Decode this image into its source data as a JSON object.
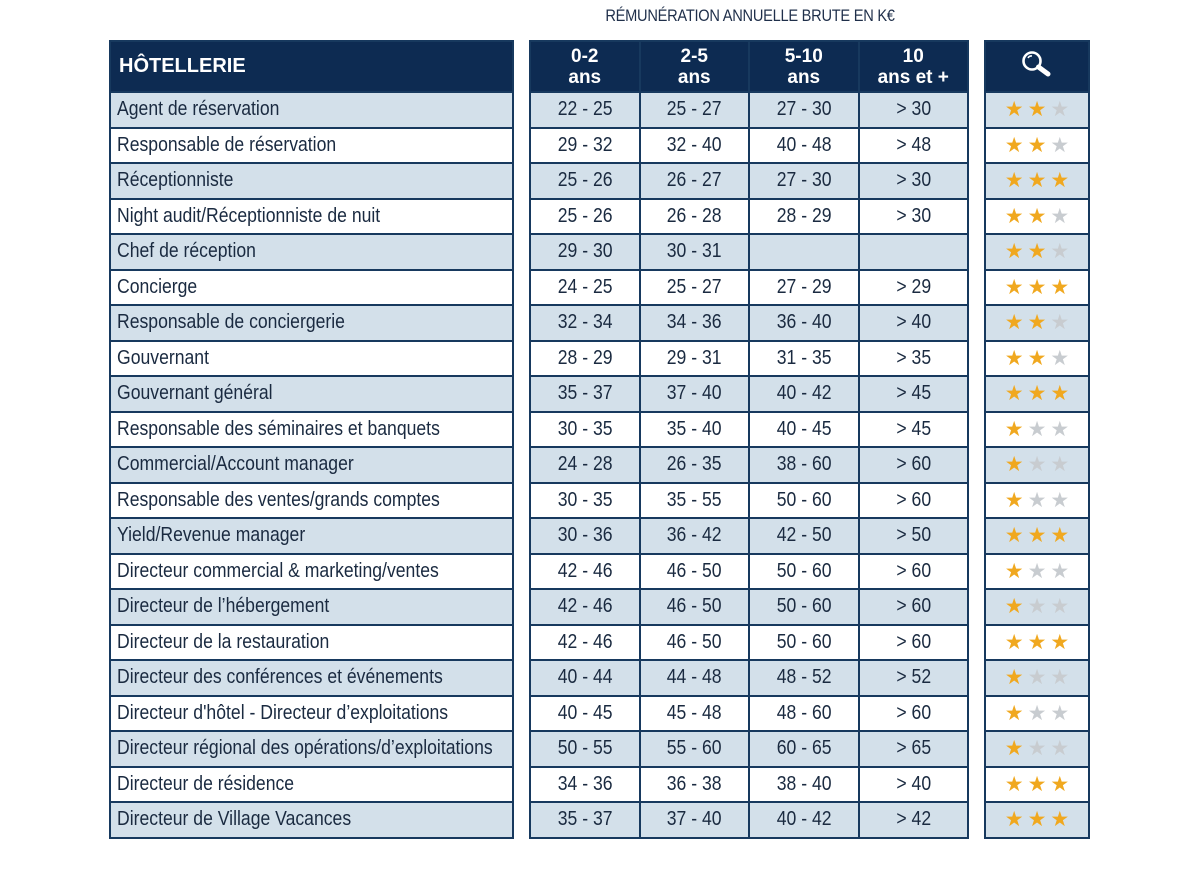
{
  "caption": "RÉMUNÉRATION ANNUELLE BRUTE EN K€",
  "table_title": "HÔTELLERIE",
  "columns": [
    {
      "line1": "0-2",
      "line2": "ans"
    },
    {
      "line1": "2-5",
      "line2": "ans"
    },
    {
      "line1": "5-10",
      "line2": "ans"
    },
    {
      "line1": "10",
      "line2": "ans et +"
    }
  ],
  "rating_header_icon": "magnifier-icon",
  "colors": {
    "header_bg": "#0d2b52",
    "row_alt": "#d3e0ea",
    "star": "#f0a81f",
    "star_empty": "#c8ccd0"
  },
  "rows": [
    {
      "job": "Agent de réservation",
      "salaries": [
        "22 - 25",
        "25 - 27",
        "27 - 30",
        "> 30"
      ],
      "stars": [
        "full",
        "full",
        "empty"
      ]
    },
    {
      "job": "Responsable de réservation",
      "salaries": [
        "29 - 32",
        "32 - 40",
        "40 - 48",
        "> 48"
      ],
      "stars": [
        "full",
        "full",
        "empty"
      ]
    },
    {
      "job": "Réceptionniste",
      "salaries": [
        "25 - 26",
        "26 - 27",
        "27 - 30",
        "> 30"
      ],
      "stars": [
        "full",
        "full",
        "full"
      ]
    },
    {
      "job": "Night audit/Réceptionniste de nuit",
      "salaries": [
        "25 - 26",
        "26 - 28",
        "28 - 29",
        "> 30"
      ],
      "stars": [
        "full",
        "full",
        "empty"
      ]
    },
    {
      "job": "Chef de réception",
      "salaries": [
        "29 - 30",
        "30 - 31",
        "",
        ""
      ],
      "stars": [
        "full",
        "full",
        "empty"
      ]
    },
    {
      "job": "Concierge",
      "salaries": [
        "24 - 25",
        "25 - 27",
        "27 - 29",
        "> 29"
      ],
      "stars": [
        "full",
        "full",
        "full"
      ]
    },
    {
      "job": "Responsable de conciergerie",
      "salaries": [
        "32 - 34",
        "34 - 36",
        "36 - 40",
        "> 40"
      ],
      "stars": [
        "full",
        "full",
        "empty"
      ]
    },
    {
      "job": "Gouvernant",
      "salaries": [
        "28 - 29",
        "29 - 31",
        "31 - 35",
        "> 35"
      ],
      "stars": [
        "full",
        "full",
        "empty"
      ]
    },
    {
      "job": "Gouvernant général",
      "salaries": [
        "35 - 37",
        "37 - 40",
        "40 - 42",
        "> 45"
      ],
      "stars": [
        "full",
        "full",
        "full"
      ]
    },
    {
      "job": "Responsable des séminaires et banquets",
      "salaries": [
        "30 - 35",
        "35 - 40",
        "40 - 45",
        "> 45"
      ],
      "stars": [
        "full",
        "empty",
        "empty"
      ]
    },
    {
      "job": "Commercial/Account manager",
      "salaries": [
        "24 - 28",
        "26 - 35",
        "38 - 60",
        "> 60"
      ],
      "stars": [
        "full",
        "empty",
        "empty"
      ]
    },
    {
      "job": "Responsable des ventes/grands comptes",
      "salaries": [
        "30 - 35",
        "35 - 55",
        "50 - 60",
        "> 60"
      ],
      "stars": [
        "full",
        "empty",
        "empty"
      ]
    },
    {
      "job": "Yield/Revenue manager",
      "salaries": [
        "30 - 36",
        "36 - 42",
        "42 - 50",
        "> 50"
      ],
      "stars": [
        "full",
        "full",
        "full"
      ]
    },
    {
      "job": "Directeur commercial & marketing/ventes",
      "salaries": [
        "42 - 46",
        "46 - 50",
        "50 - 60",
        "> 60"
      ],
      "stars": [
        "full",
        "empty",
        "empty"
      ]
    },
    {
      "job": "Directeur de l’hébergement",
      "salaries": [
        "42 - 46",
        "46 - 50",
        "50 - 60",
        "> 60"
      ],
      "stars": [
        "full",
        "empty",
        "empty"
      ]
    },
    {
      "job": "Directeur de la restauration",
      "salaries": [
        "42 - 46",
        "46 - 50",
        "50 - 60",
        "> 60"
      ],
      "stars": [
        "full",
        "full",
        "full"
      ]
    },
    {
      "job": "Directeur des conférences et événements",
      "salaries": [
        "40 - 44",
        "44 - 48",
        "48 - 52",
        "> 52"
      ],
      "stars": [
        "full",
        "empty",
        "empty"
      ]
    },
    {
      "job": "Directeur d'hôtel - Directeur d’exploitations",
      "salaries": [
        "40 - 45",
        "45 - 48",
        "48 - 60",
        "> 60"
      ],
      "stars": [
        "full",
        "empty",
        "empty"
      ]
    },
    {
      "job": "Directeur régional des opérations/d’exploitations",
      "salaries": [
        "50 - 55",
        "55 - 60",
        "60 - 65",
        "> 65"
      ],
      "stars": [
        "full",
        "empty",
        "empty"
      ]
    },
    {
      "job": "Directeur de résidence",
      "salaries": [
        "34 - 36",
        "36 - 38",
        "38 - 40",
        "> 40"
      ],
      "stars": [
        "full",
        "full",
        "full"
      ]
    },
    {
      "job": "Directeur de Village Vacances",
      "salaries": [
        "35 - 37",
        "37 - 40",
        "40 - 42",
        "> 42"
      ],
      "stars": [
        "full",
        "full",
        "full"
      ]
    }
  ]
}
